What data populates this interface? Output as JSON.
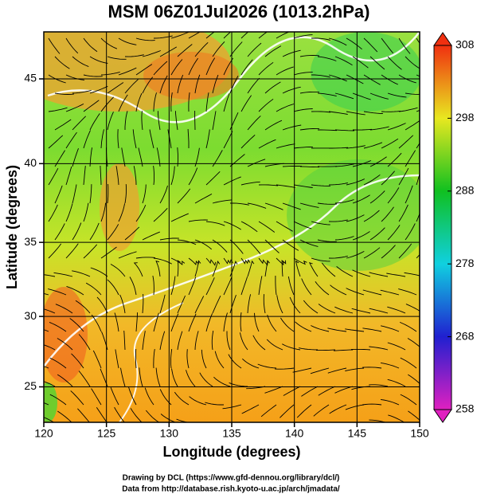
{
  "map": {
    "title": "MSM 06Z01Jul2026 (1013.2hPa)",
    "xlabel": "Longitude (degrees)",
    "ylabel": "Latitude  (degrees)",
    "projection": "mercator",
    "xlim": [
      120,
      150
    ],
    "ylim": [
      22.4,
      47.6
    ],
    "xticks": [
      120,
      125,
      130,
      135,
      140,
      145,
      150
    ],
    "yticks": [
      25,
      30,
      35,
      40,
      45
    ],
    "grid": true,
    "colorbar": {
      "clim": [
        258,
        308
      ],
      "ticks": [
        258,
        268,
        278,
        288,
        298,
        308
      ],
      "colors": [
        "#e020c0",
        "#2020d0",
        "#10d0e0",
        "#10c020",
        "#e8e820",
        "#f03010"
      ]
    },
    "credits": [
      "Drawing by DCL (https://www.gfd-dennou.org/library/dcl/)",
      "Data from http://database.rish.kyoto-u.ac.jp/arch/jmadata/"
    ]
  }
}
